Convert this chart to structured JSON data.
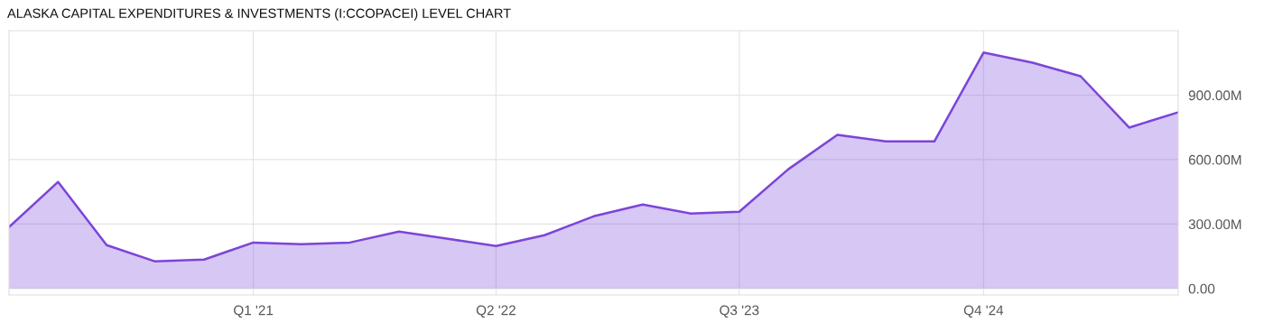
{
  "chart_data": {
    "type": "area",
    "title": "ALASKA CAPITAL EXPENDITURES & INVESTMENTS (I:CCOPACEI) LEVEL CHART",
    "x": [
      "2019-10",
      "2020-01",
      "2020-04",
      "2020-07",
      "2020-10",
      "2021-01",
      "2021-04",
      "2021-07",
      "2021-10",
      "2022-01",
      "2022-04",
      "2022-07",
      "2022-10",
      "2023-01",
      "2023-04",
      "2023-07",
      "2023-10",
      "2024-01",
      "2024-04",
      "2024-07",
      "2024-10",
      "2025-01",
      "2025-04",
      "2025-07",
      "2025-10"
    ],
    "series": [
      {
        "color": "#7b45d9",
        "values": [
          286,
          496,
          202,
          126,
          135,
          214,
          206,
          214,
          265,
          231,
          198,
          248,
          336,
          391,
          349,
          357,
          555,
          715,
          685,
          685,
          1098,
          1051,
          988,
          749,
          820
        ]
      }
    ],
    "xlim": [
      "2019-10",
      "2025-10"
    ],
    "xticks": [
      {
        "value": "2021-01",
        "label": "Q1 '21"
      },
      {
        "value": "2022-04",
        "label": "Q2 '22"
      },
      {
        "value": "2023-07",
        "label": "Q3 '23"
      },
      {
        "value": "2024-10",
        "label": "Q4 '24"
      }
    ],
    "ylim": [
      -30,
      1200
    ],
    "yticks": [
      {
        "value": 0,
        "label": "0.00"
      },
      {
        "value": 300,
        "label": "300.00M"
      },
      {
        "value": 600,
        "label": "600.00M"
      },
      {
        "value": 900,
        "label": "900.00M"
      }
    ],
    "grid": true
  }
}
